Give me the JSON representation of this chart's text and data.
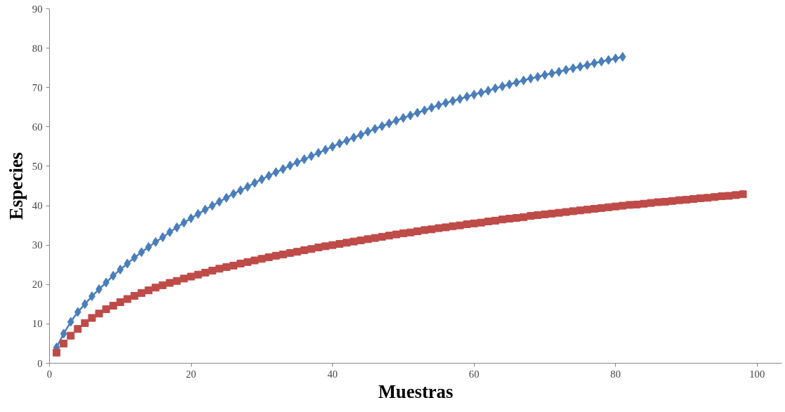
{
  "chart_data": {
    "type": "scatter",
    "xlabel": "Muestras",
    "ylabel": "Especies",
    "xlim": [
      0,
      103.5
    ],
    "xticks": [
      0,
      20,
      40,
      60,
      80,
      100
    ],
    "ylim": [
      0,
      90
    ],
    "yticks": [
      0,
      10,
      20,
      30,
      40,
      50,
      60,
      70,
      80,
      90
    ],
    "grid": false,
    "series": [
      {
        "type": "line",
        "marker": "diamond",
        "color": "#4a7ebb",
        "x": [
          1,
          2,
          3,
          4,
          5,
          6,
          7,
          8,
          9,
          10,
          11,
          12,
          13,
          14,
          15,
          16,
          17,
          18,
          19,
          20,
          21,
          22,
          23,
          24,
          25,
          26,
          27,
          28,
          29,
          30,
          31,
          32,
          33,
          34,
          35,
          36,
          37,
          38,
          39,
          40,
          41,
          42,
          43,
          44,
          45,
          46,
          47,
          48,
          49,
          50,
          51,
          52,
          53,
          54,
          55,
          56,
          57,
          58,
          59,
          60,
          61,
          62,
          63,
          64,
          65,
          66,
          67,
          68,
          69,
          70,
          71,
          72,
          73,
          74,
          75,
          76,
          77,
          78,
          79,
          80,
          81
        ],
        "values": [
          4.0,
          7.5,
          10.5,
          13.0,
          15.0,
          17.0,
          18.8,
          20.5,
          22.2,
          23.8,
          25.3,
          26.8,
          28.2,
          29.5,
          30.8,
          32.0,
          33.3,
          34.5,
          35.7,
          36.8,
          37.9,
          39.0,
          40.0,
          41.0,
          42.0,
          43.0,
          43.9,
          44.8,
          45.8,
          46.7,
          47.6,
          48.5,
          49.3,
          50.2,
          51.0,
          51.8,
          52.6,
          53.4,
          54.2,
          55.0,
          55.8,
          56.5,
          57.3,
          58.0,
          58.8,
          59.5,
          60.2,
          60.9,
          61.6,
          62.3,
          62.9,
          63.6,
          64.2,
          64.9,
          65.5,
          66.1,
          66.6,
          67.1,
          67.7,
          68.2,
          68.7,
          69.2,
          69.8,
          70.3,
          70.8,
          71.3,
          71.8,
          72.3,
          72.7,
          73.2,
          73.6,
          74.0,
          74.5,
          74.9,
          75.3,
          75.7,
          76.2,
          76.6,
          77.0,
          77.4,
          77.8
        ]
      },
      {
        "marker": "square",
        "color": "#be4b48",
        "x": [
          1,
          2,
          3,
          4,
          5,
          6,
          7,
          8,
          9,
          10,
          11,
          12,
          13,
          14,
          15,
          16,
          17,
          18,
          19,
          20,
          21,
          22,
          23,
          24,
          25,
          26,
          27,
          28,
          29,
          30,
          31,
          32,
          33,
          34,
          35,
          36,
          37,
          38,
          39,
          40,
          41,
          42,
          43,
          44,
          45,
          46,
          47,
          48,
          49,
          50,
          51,
          52,
          53,
          54,
          55,
          56,
          57,
          58,
          59,
          60,
          61,
          62,
          63,
          64,
          65,
          66,
          67,
          68,
          69,
          70,
          71,
          72,
          73,
          74,
          75,
          76,
          77,
          78,
          79,
          80,
          81,
          82,
          83,
          84,
          85,
          86,
          87,
          88,
          89,
          90,
          91,
          92,
          93,
          94,
          95,
          96,
          97,
          98
        ],
        "values": [
          2.7,
          5.0,
          7.0,
          8.7,
          10.2,
          11.5,
          12.6,
          13.7,
          14.6,
          15.5,
          16.3,
          17.1,
          17.8,
          18.5,
          19.2,
          19.8,
          20.4,
          20.9,
          21.5,
          22.0,
          22.5,
          23.0,
          23.5,
          24.0,
          24.4,
          24.8,
          25.3,
          25.7,
          26.1,
          26.5,
          26.9,
          27.3,
          27.6,
          28.0,
          28.3,
          28.7,
          29.0,
          29.4,
          29.7,
          30.0,
          30.3,
          30.6,
          30.9,
          31.2,
          31.5,
          31.8,
          32.1,
          32.4,
          32.7,
          33.0,
          33.2,
          33.5,
          33.8,
          34.0,
          34.3,
          34.5,
          34.8,
          35.0,
          35.3,
          35.5,
          35.7,
          36.0,
          36.2,
          36.5,
          36.7,
          36.9,
          37.1,
          37.4,
          37.6,
          37.8,
          38.0,
          38.2,
          38.4,
          38.6,
          38.8,
          39.0,
          39.2,
          39.4,
          39.6,
          39.8,
          40.0,
          40.2,
          40.3,
          40.5,
          40.7,
          40.9,
          41.0,
          41.2,
          41.4,
          41.5,
          41.7,
          41.9,
          42.0,
          42.2,
          42.4,
          42.5,
          42.7,
          42.9
        ]
      }
    ]
  }
}
